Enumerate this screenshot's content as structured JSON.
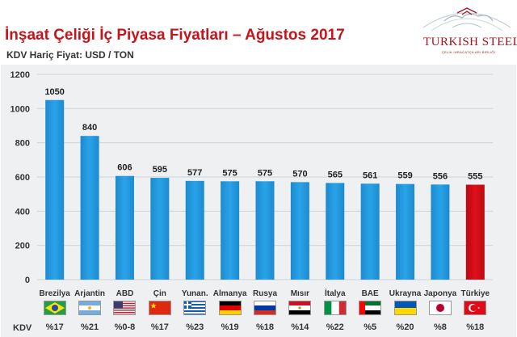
{
  "title": "İnşaat Çeliği İç Piyasa Fiyatları – Ağustos 2017",
  "subtitle": "KDV Hariç Fiyat: USD / TON",
  "logo": {
    "main": "TURKISH STEEL",
    "sub": "ÇELİK İHRACATÇILARI BİRLİĞİ"
  },
  "kdv_label": "KDV",
  "chart_data": {
    "type": "bar",
    "categories": [
      "Brezilya",
      "Arjantin",
      "ABD",
      "Çin",
      "Yunan.",
      "Almanya",
      "Rusya",
      "Mısır",
      "İtalya",
      "BAE",
      "Ukrayna",
      "Japonya",
      "Türkiye"
    ],
    "values": [
      1050,
      840,
      606,
      595,
      577,
      575,
      575,
      570,
      565,
      561,
      559,
      556,
      555
    ],
    "data_labels": [
      "1050",
      "840",
      "606",
      "595",
      "577",
      "575",
      "575",
      "570",
      "565",
      "561",
      "559",
      "556",
      "555"
    ],
    "ylim": [
      0,
      1200
    ],
    "yticks": [
      0,
      200,
      400,
      600,
      800,
      1000,
      1200
    ],
    "grid": true,
    "bar_color": "#29a3e8",
    "highlight_color": "#e0101a",
    "highlight_category": "Türkiye",
    "kdv": [
      "%17",
      "%21",
      "%0-8",
      "%17",
      "%23",
      "%19",
      "%18",
      "%14",
      "%22",
      "%5",
      "%20",
      "%8",
      "%18"
    ],
    "flags": [
      "brazil-flag-icon",
      "argentina-flag-icon",
      "usa-flag-icon",
      "china-flag-icon",
      "greece-flag-icon",
      "germany-flag-icon",
      "russia-flag-icon",
      "egypt-flag-icon",
      "italy-flag-icon",
      "uae-flag-icon",
      "ukraine-flag-icon",
      "japan-flag-icon",
      "turkey-flag-icon"
    ]
  }
}
